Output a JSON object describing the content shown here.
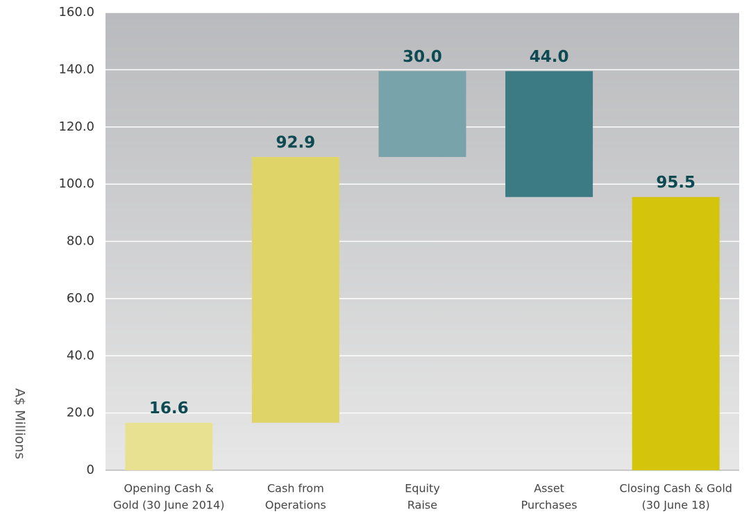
{
  "chart_data": {
    "type": "waterfall",
    "y_label": "A$ Millions",
    "categories": [
      [
        "Opening Cash &",
        "Gold (30 June 2014)"
      ],
      [
        "Cash from",
        "Operations"
      ],
      [
        "Equity",
        "Raise"
      ],
      [
        "Asset",
        "Purchases"
      ],
      [
        "Closing Cash & Gold",
        "(30 June 18)"
      ]
    ],
    "measures": [
      "absolute",
      "relative",
      "relative",
      "relative",
      "total"
    ],
    "values": [
      16.6,
      92.9,
      30.0,
      -44.0,
      95.5
    ],
    "value_labels": [
      "16.6",
      "92.9",
      "30.0",
      "44.0",
      "95.5"
    ],
    "colors": [
      "#e8e192",
      "#dfd468",
      "#78a3aa",
      "#3d7b84",
      "#d4c50c"
    ],
    "ylim": [
      0,
      160
    ],
    "yticks": [
      0,
      {
        "value": 20,
        "label": "20.0"
      },
      {
        "value": 40,
        "label": "40.0"
      },
      {
        "value": 60,
        "label": "60.0"
      },
      {
        "value": 80,
        "label": "80.0"
      },
      {
        "value": 100,
        "label": "100.0"
      },
      {
        "value": 120,
        "label": "120.0"
      },
      {
        "value": 140,
        "label": "140.0"
      },
      {
        "value": 160,
        "label": "160.0"
      }
    ],
    "grid": true
  }
}
